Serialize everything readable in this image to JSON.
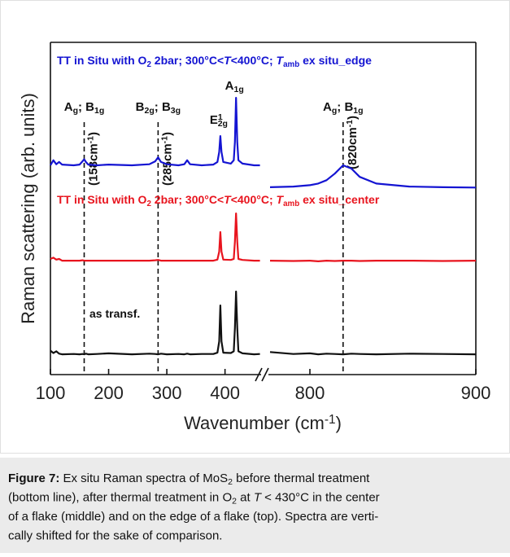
{
  "chart_data": {
    "type": "line",
    "xlabel": [
      {
        "text": "Wavenumber (cm"
      },
      {
        "text": "-1",
        "style": "sup"
      },
      {
        "text": ")"
      }
    ],
    "ylabel": "Raman scattering (arb. units)",
    "xlim": [
      [
        100,
        462
      ],
      [
        775,
        900
      ]
    ],
    "ylim": [
      0,
      100
    ],
    "xticks": [
      100,
      200,
      300,
      400,
      800,
      900
    ],
    "x": [
      100,
      105,
      110,
      115,
      120,
      140,
      150,
      155,
      158,
      161,
      165,
      180,
      200,
      240,
      270,
      280,
      285,
      290,
      300,
      320,
      330,
      335,
      340,
      360,
      380,
      387,
      390,
      392,
      394,
      397,
      410,
      415,
      417,
      419,
      421,
      423,
      430,
      450,
      460,
      776,
      790,
      800,
      805,
      810,
      815,
      820,
      825,
      830,
      840,
      860,
      880,
      900
    ],
    "series": [
      {
        "name": [
          {
            "text": "TT in Situ with O"
          },
          {
            "text": "2",
            "style": "sub"
          },
          {
            "text": " 2bar; 300°C<"
          },
          {
            "text": "T",
            "style": "italic"
          },
          {
            "text": "<400°C; "
          },
          {
            "text": "T",
            "style": "italic"
          },
          {
            "text": "amb",
            "style": "sub"
          },
          {
            "text": " ex situ_edge"
          }
        ],
        "color": "#1414d2",
        "values": [
          63,
          64.5,
          63.3,
          64,
          63.2,
          63,
          63.2,
          64.2,
          64.8,
          64,
          63.2,
          63,
          63.2,
          63,
          63.3,
          64.2,
          65.4,
          64,
          63.3,
          63,
          63.3,
          64.5,
          63.3,
          63,
          63.2,
          64,
          67,
          71.8,
          67,
          64,
          63.5,
          64.5,
          70,
          83.3,
          70,
          64.5,
          63.5,
          63,
          63,
          56.4,
          56.6,
          57,
          57.5,
          58.5,
          60.5,
          63,
          62,
          59.5,
          57.5,
          56.6,
          56.4,
          56.3
        ]
      },
      {
        "name": [
          {
            "text": "TT in Situ with O"
          },
          {
            "text": "2",
            "style": "sub"
          },
          {
            "text": " 2bar; 300°C<"
          },
          {
            "text": "T",
            "style": "italic"
          },
          {
            "text": "<400°C; "
          },
          {
            "text": "T",
            "style": "italic"
          },
          {
            "text": "amb",
            "style": "sub"
          },
          {
            "text": " ex situ_center"
          }
        ],
        "color": "#e8141e",
        "values": [
          34.8,
          35.2,
          34.6,
          34.8,
          34.3,
          34.3,
          34.3,
          34.4,
          34.3,
          34.3,
          34.3,
          34.3,
          34.3,
          34.3,
          34.3,
          34.4,
          34.5,
          34.3,
          34.3,
          34.3,
          34.3,
          34.3,
          34.3,
          34.3,
          34.3,
          34.6,
          37,
          42.9,
          37,
          34.6,
          34.5,
          34.8,
          40,
          48.5,
          40,
          34.8,
          34.5,
          34.3,
          34.3,
          34.3,
          34.2,
          34.3,
          34.1,
          34.3,
          34.2,
          34.3,
          34.3,
          34.2,
          34.3,
          34.3,
          34.2,
          34.3
        ]
      },
      {
        "name": [
          {
            "text": "as transf."
          }
        ],
        "color": "#111111",
        "values": [
          7.2,
          6.5,
          7,
          6.3,
          6.1,
          6.2,
          6.1,
          6.2,
          6.1,
          6.3,
          6.1,
          6.2,
          6.4,
          6.1,
          6.3,
          6.2,
          6.1,
          6.3,
          6.1,
          6.2,
          6.1,
          6.3,
          6.1,
          6.2,
          6.2,
          6.6,
          10,
          20.8,
          10,
          6.6,
          6.5,
          7,
          14,
          25,
          14,
          7,
          6.4,
          6.1,
          6.2,
          6.8,
          6.2,
          6.4,
          6.1,
          6.3,
          6.2,
          6.1,
          6.3,
          6.2,
          6.1,
          6.3,
          6.2,
          6.1
        ]
      }
    ],
    "mode_lines": [
      {
        "x": 158,
        "label": [
          {
            "text": "A"
          },
          {
            "text": "g",
            "style": "sub"
          },
          {
            "text": "; B"
          },
          {
            "text": "1g",
            "style": "sub"
          }
        ],
        "note": [
          {
            "text": "(158cm"
          },
          {
            "text": "-1",
            "style": "sup"
          },
          {
            "text": ")"
          }
        ]
      },
      {
        "x": 285,
        "label": [
          {
            "text": "B"
          },
          {
            "text": "2g",
            "style": "sub"
          },
          {
            "text": "; B"
          },
          {
            "text": "3g",
            "style": "sub"
          }
        ],
        "note": [
          {
            "text": "(285cm"
          },
          {
            "text": "-1",
            "style": "sup"
          },
          {
            "text": ")"
          }
        ]
      },
      {
        "x": 820,
        "label": [
          {
            "text": "A"
          },
          {
            "text": "g",
            "style": "sub"
          },
          {
            "text": "; B"
          },
          {
            "text": "1g",
            "style": "sub"
          }
        ],
        "note": [
          {
            "text": "(820cm"
          },
          {
            "text": "-1",
            "style": "sup"
          },
          {
            "text": ")"
          }
        ]
      }
    ],
    "peak_labels": [
      {
        "x": 392,
        "label": [
          {
            "text": "E"
          },
          {
            "text": "1",
            "style": "sup"
          },
          {
            "text": "2g",
            "style": "sub"
          }
        ]
      },
      {
        "x": 419,
        "label": [
          {
            "text": "A"
          },
          {
            "text": "1g",
            "style": "sub"
          }
        ]
      }
    ]
  },
  "caption": [
    [
      {
        "text": "Figure 7:",
        "style": "bold"
      },
      {
        "text": " Ex situ Raman spectra of MoS"
      },
      {
        "text": "2",
        "style": "sub"
      },
      {
        "text": " before thermal treatment"
      }
    ],
    [
      {
        "text": "(bottom line), after thermal treatment in O"
      },
      {
        "text": "2",
        "style": "sub"
      },
      {
        "text": " at "
      },
      {
        "text": "T",
        "style": "italic"
      },
      {
        "text": " < 430°C in the center"
      }
    ],
    [
      {
        "text": "of a flake (middle) and on the edge of a flake (top). Spectra are verti-"
      }
    ],
    [
      {
        "text": "cally shifted for the sake of comparison."
      }
    ]
  ]
}
